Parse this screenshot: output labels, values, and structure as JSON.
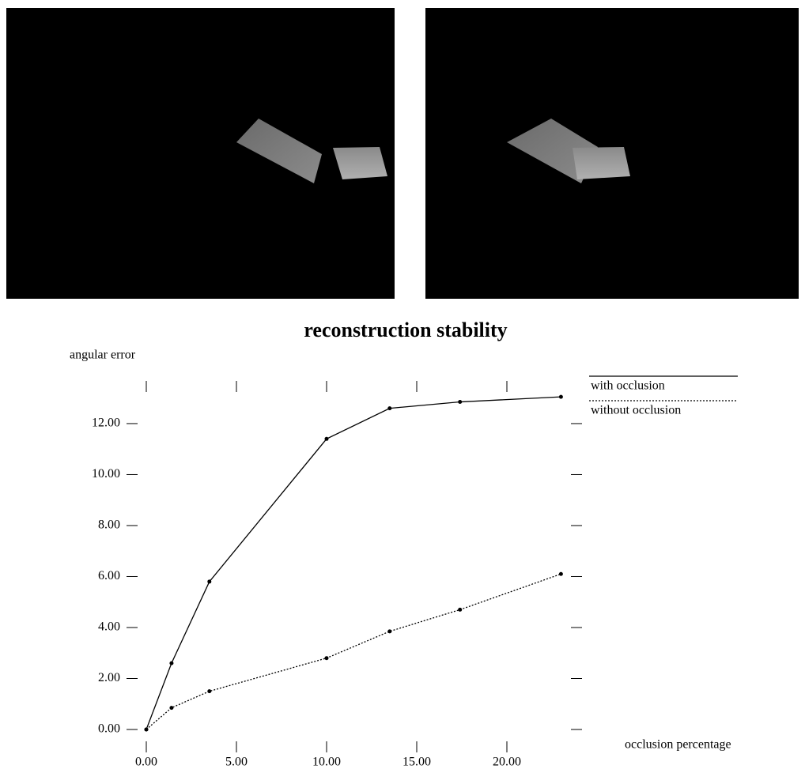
{
  "chart_data": {
    "type": "line",
    "title": "reconstruction stability",
    "y_label": "angular error",
    "x_label": "occlusion percentage",
    "series": [
      {
        "name": "with occlusion",
        "color": "#000000",
        "style": "solid",
        "x": [
          0,
          1.4,
          3.5,
          10,
          13.5,
          17.4,
          23
        ],
        "values": [
          0,
          2.6,
          5.8,
          11.4,
          12.6,
          12.85,
          13.05
        ]
      },
      {
        "name": "without occlusion",
        "color": "#000000",
        "style": "dotted",
        "x": [
          0,
          1.4,
          3.5,
          10,
          13.5,
          17.4,
          23
        ],
        "values": [
          0,
          0.85,
          1.5,
          2.8,
          3.85,
          4.7,
          6.1
        ]
      }
    ],
    "xlim": [
      -0.5,
      23.86
    ],
    "ylim": [
      -0.4,
      13.4
    ],
    "xticks": [
      {
        "value": 0,
        "label": "0.00"
      },
      {
        "value": 5,
        "label": "5.00"
      },
      {
        "value": 10,
        "label": "10.00"
      },
      {
        "value": 15,
        "label": "15.00"
      },
      {
        "value": 20,
        "label": "20.00"
      }
    ],
    "yticks": [
      {
        "value": 0,
        "label": "0.00"
      },
      {
        "value": 2,
        "label": "2.00"
      },
      {
        "value": 4,
        "label": "4.00"
      },
      {
        "value": 6,
        "label": "6.00"
      },
      {
        "value": 8,
        "label": "8.00"
      },
      {
        "value": 10,
        "label": "10.00"
      },
      {
        "value": 12,
        "label": "12.00"
      }
    ],
    "legend": "upper right"
  }
}
